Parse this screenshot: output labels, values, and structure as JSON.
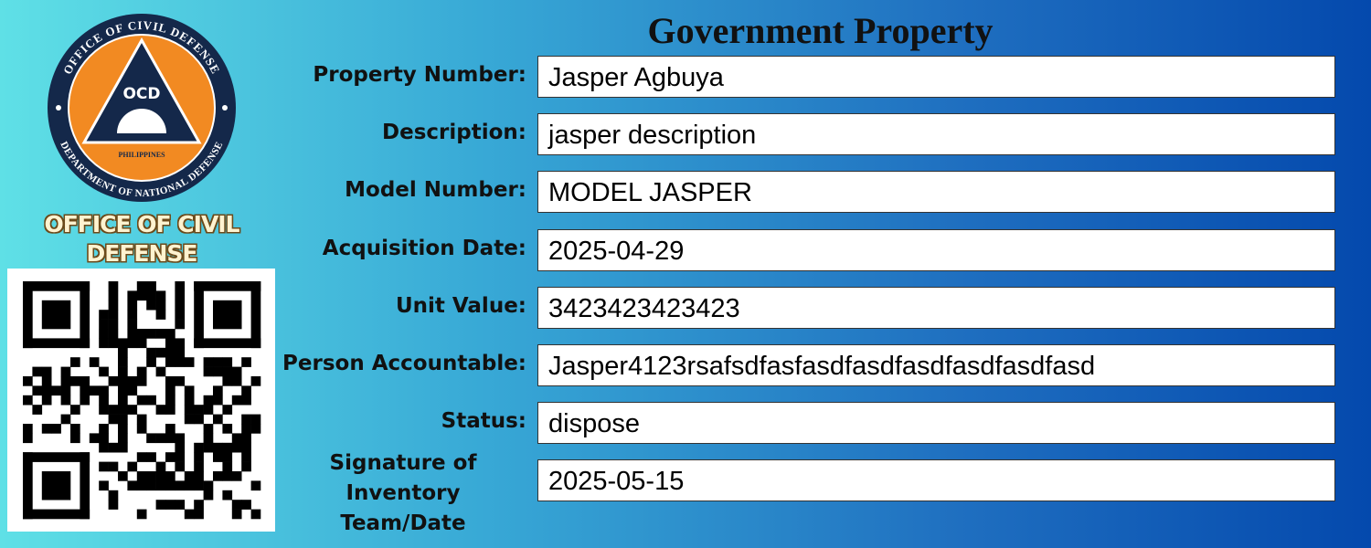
{
  "logo": {
    "ring_top": "OFFICE OF CIVIL DEFENSE",
    "ring_bottom": "DEPARTMENT OF NATIONAL DEFENSE",
    "emblem": "OCD",
    "country": "PHILIPPINES"
  },
  "agency": "OFFICE OF CIVIL DEFENSE",
  "title": "Government Property",
  "fields": [
    {
      "label": "Property Number:",
      "value": "Jasper Agbuya"
    },
    {
      "label": "Description:",
      "value": "jasper description"
    },
    {
      "label": "Model Number:",
      "value": "MODEL JASPER"
    },
    {
      "label": "Acquisition Date:",
      "value": "2025-04-29"
    },
    {
      "label": "Unit Value:",
      "value": "3423423423423"
    },
    {
      "label": "Person Accountable:",
      "value": "Jasper4123rsafsdfasfasdfasdfasdfasdfasdfasd"
    },
    {
      "label": "Status:",
      "value": "dispose"
    },
    {
      "label": "Signature of Inventory Team/Date",
      "value": "2025-05-15"
    }
  ]
}
